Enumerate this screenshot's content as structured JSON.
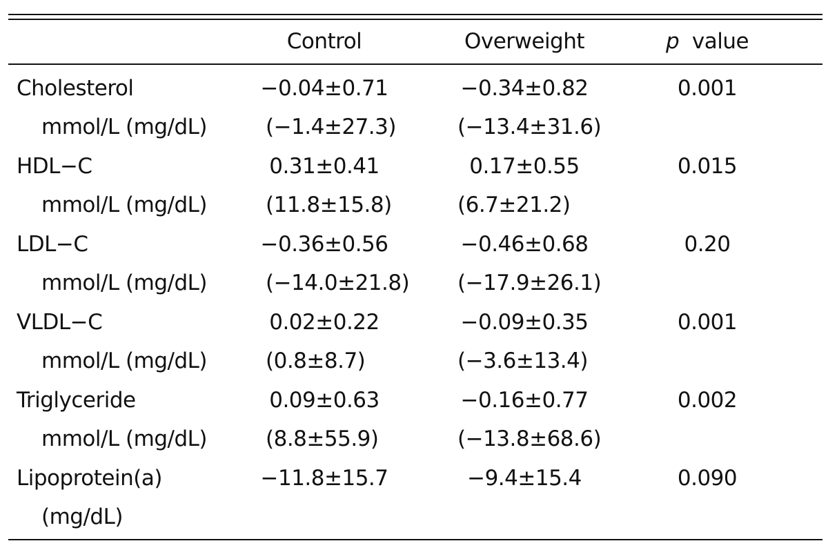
{
  "header": {
    "col_control": "Control",
    "col_overweight": "Overweight",
    "col_p_symbol": "p",
    "col_p_text": "value"
  },
  "rows": [
    {
      "name": "Cholesterol",
      "unit": "mmol/L (mg/dL)",
      "control": "−0.04±0.71",
      "control_mg": "(−1.4±27.3)",
      "overweight": "−0.34±0.82",
      "overweight_mg": "(−13.4±31.6)",
      "p": "0.001"
    },
    {
      "name": "HDL−C",
      "unit": "mmol/L (mg/dL)",
      "control": "0.31±0.41",
      "control_mg": "(11.8±15.8)",
      "overweight": "0.17±0.55",
      "overweight_mg": "(6.7±21.2)",
      "p": "0.015"
    },
    {
      "name": "LDL−C",
      "unit": "mmol/L (mg/dL)",
      "control": "−0.36±0.56",
      "control_mg": "(−14.0±21.8)",
      "overweight": "−0.46±0.68",
      "overweight_mg": "(−17.9±26.1)",
      "p": "0.20"
    },
    {
      "name": "VLDL−C",
      "unit": "mmol/L (mg/dL)",
      "control": "0.02±0.22",
      "control_mg": "(0.8±8.7)",
      "overweight": "−0.09±0.35",
      "overweight_mg": "(−3.6±13.4)",
      "p": "0.001"
    },
    {
      "name": "Triglyceride",
      "unit": "mmol/L (mg/dL)",
      "control": "0.09±0.63",
      "control_mg": "(8.8±55.9)",
      "overweight": "−0.16±0.77",
      "overweight_mg": "(−13.8±68.6)",
      "p": "0.002"
    },
    {
      "name": "Lipoprotein(a)",
      "unit": "(mg/dL)",
      "control": "−11.8±15.7",
      "overweight": "−9.4±15.4",
      "p": "0.090"
    }
  ]
}
